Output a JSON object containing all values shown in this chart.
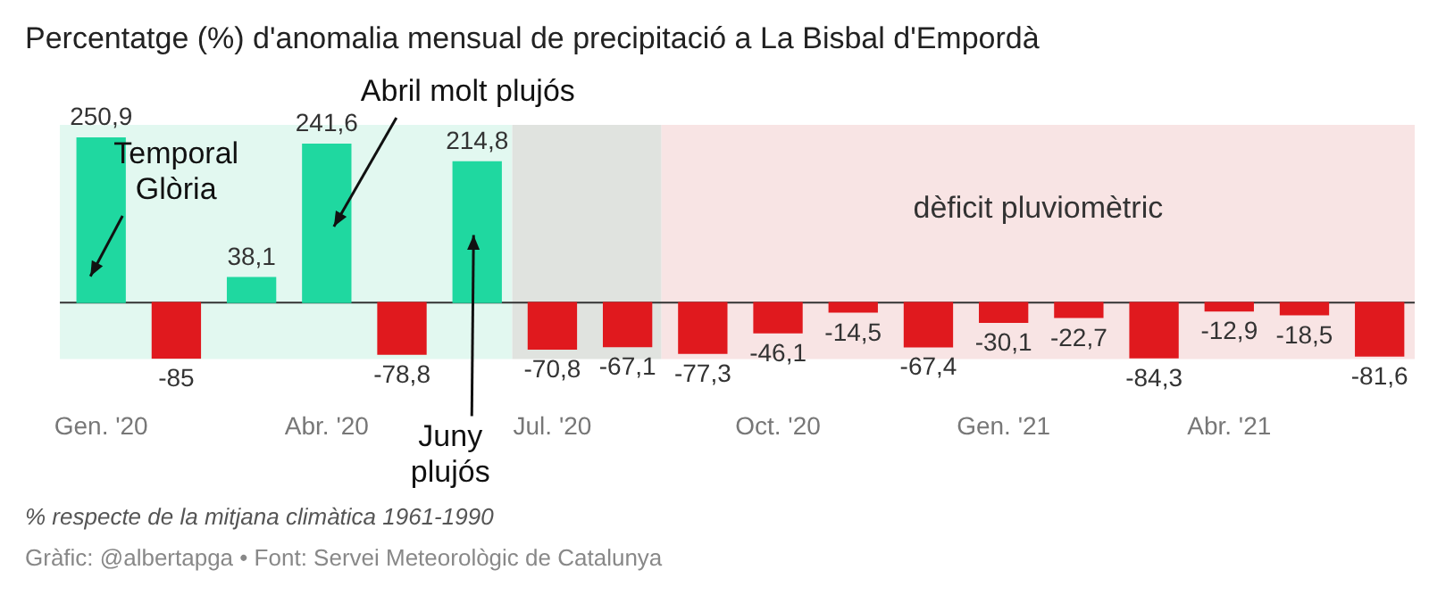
{
  "chart_data": {
    "type": "bar",
    "title": "Percentatge (%) d'anomalia mensual de precipitació a La Bisbal d'Empordà",
    "x": [
      "2020-01",
      "2020-02",
      "2020-03",
      "2020-04",
      "2020-05",
      "2020-06",
      "2020-07",
      "2020-08",
      "2020-09",
      "2020-10",
      "2020-11",
      "2020-12",
      "2021-01",
      "2021-02",
      "2021-03",
      "2021-04",
      "2021-05",
      "2021-06"
    ],
    "values": [
      250.9,
      -85,
      38.1,
      241.6,
      -78.8,
      214.8,
      -70.8,
      -67.1,
      -77.3,
      -46.1,
      -14.5,
      -67.4,
      -30.1,
      -22.7,
      -84.3,
      -12.9,
      -18.5,
      -81.6
    ],
    "value_labels": [
      "250,9",
      "-85",
      "38,1",
      "241,6",
      "-78,8",
      "214,8",
      "-70,8",
      "-67,1",
      "-77,3",
      "-46,1",
      "-14,5",
      "-67,4",
      "-30,1",
      "-22,7",
      "-84,3",
      "-12,9",
      "-18,5",
      "-81,6"
    ],
    "colors": [
      "#1fd8a0",
      "#e0191e",
      "#1fd8a0",
      "#1fd8a0",
      "#e0191e",
      "#1fd8a0",
      "#e0191e",
      "#e0191e",
      "#e0191e",
      "#e0191e",
      "#e0191e",
      "#e0191e",
      "#e0191e",
      "#e0191e",
      "#e0191e",
      "#e0191e",
      "#e0191e",
      "#e0191e"
    ],
    "xlim": [
      "2019-12-15",
      "2021-06-15"
    ],
    "xticks": [
      {
        "value": "2020-01",
        "label": "Gen. '20"
      },
      {
        "value": "2020-04",
        "label": "Abr. '20"
      },
      {
        "value": "2020-07",
        "label": "Jul. '20"
      },
      {
        "value": "2020-10",
        "label": "Oct. '20"
      },
      {
        "value": "2021-01",
        "label": "Gen. '21"
      },
      {
        "value": "2021-04",
        "label": "Abr. '21"
      }
    ],
    "ylim": [
      -86,
      271
    ],
    "tick_labels": "x",
    "grid": false,
    "legend": false,
    "bands": [
      {
        "axis": "x",
        "from": "2019-12-15",
        "to": "2020-06-15",
        "label": null,
        "color": "#e2f8f0"
      },
      {
        "axis": "x",
        "from": "2020-06-15",
        "to": "2020-08-15",
        "label": null,
        "color": "#e0e3df"
      },
      {
        "axis": "x",
        "from": "2020-08-15",
        "to": "2021-06-15",
        "label": "dèficit pluviomètric",
        "color": "#f8e4e4"
      }
    ],
    "annotations": [
      "Temporal Glòria",
      "Abril molt plujós",
      "Juny plujós",
      "% respecte de la mitjana climàtica 1961-1990",
      "Gràfic: @albertapga • Font: Servei Meteorològic de Catalunya"
    ]
  }
}
